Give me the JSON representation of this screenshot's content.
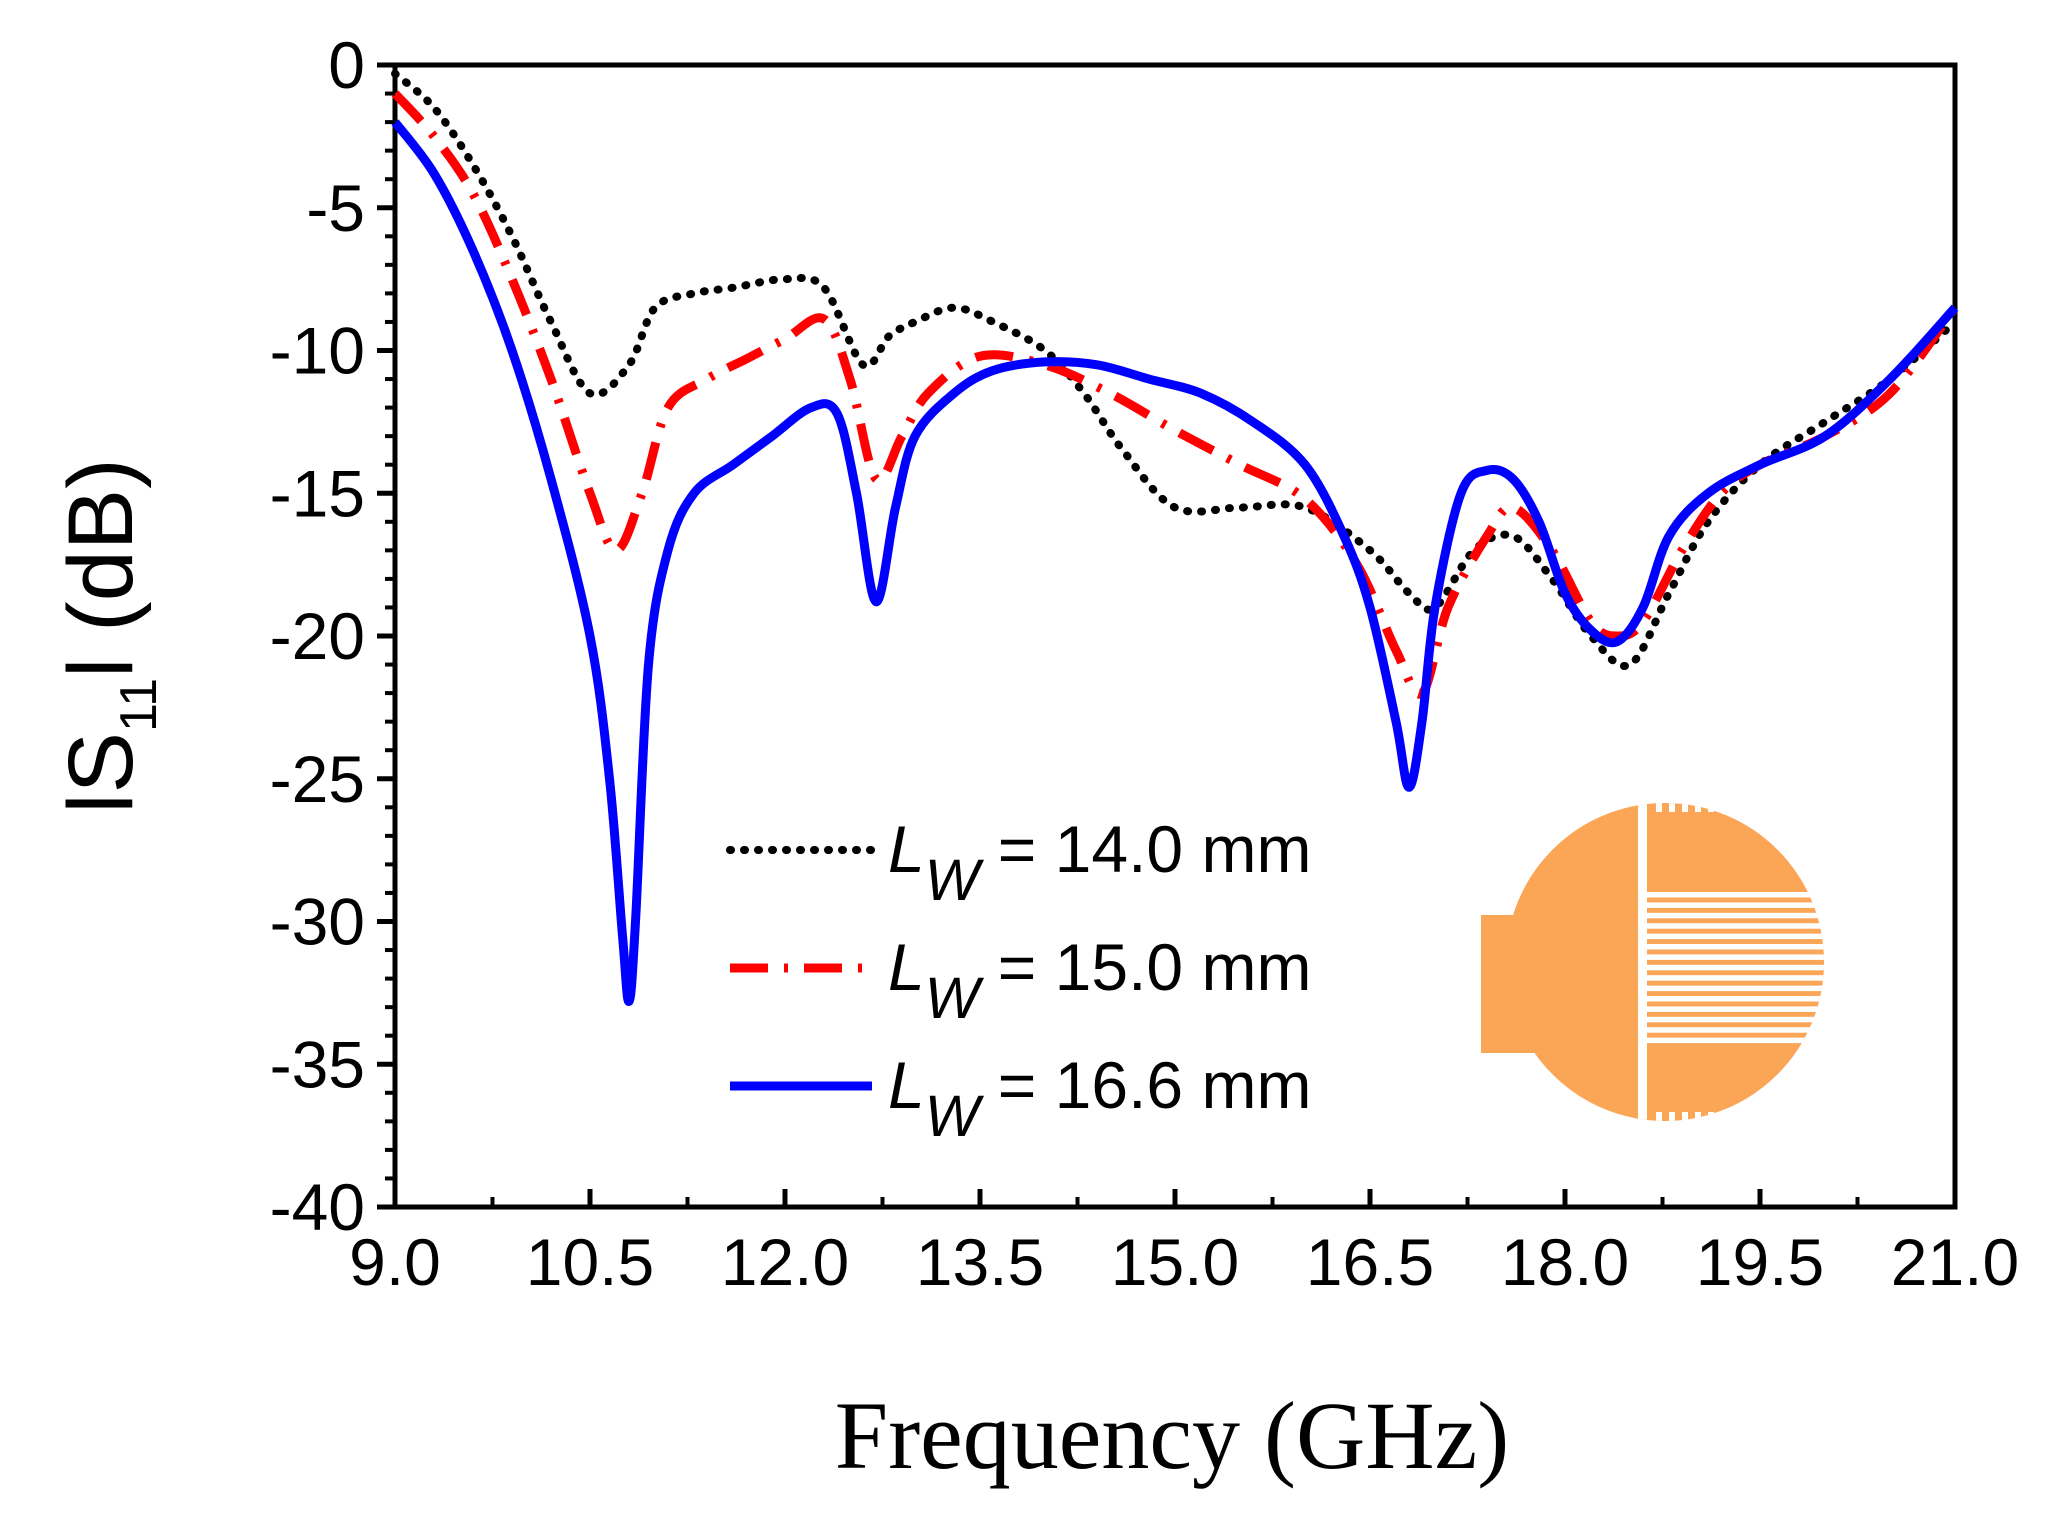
{
  "chart_data": {
    "type": "line",
    "xlabel": "Frequency (GHz)",
    "ylabel": {
      "prefix": "lS",
      "subscript": "11",
      "suffix": "l (dB)"
    },
    "xlim": [
      9.0,
      21.0
    ],
    "ylim": [
      -40,
      0
    ],
    "x_ticks": [
      "9.0",
      "10.5",
      "12.0",
      "13.5",
      "15.0",
      "16.5",
      "18.0",
      "19.5",
      "21.0"
    ],
    "x_tick_values": [
      9.0,
      10.5,
      12.0,
      13.5,
      15.0,
      16.5,
      18.0,
      19.5,
      21.0
    ],
    "y_ticks": [
      "0",
      "-5",
      "-10",
      "-15",
      "-20",
      "-25",
      "-30",
      "-35",
      "-40"
    ],
    "y_tick_values": [
      0,
      -5,
      -10,
      -15,
      -20,
      -25,
      -30,
      -35,
      -40
    ],
    "grid": false,
    "legend_position": "bottom-center",
    "series": [
      {
        "name": "L_W = 14.0 mm",
        "legend": {
          "symbol": "L",
          "sub": "W",
          "text": " = 14.0 mm"
        },
        "color": "#000000",
        "style": "dotted",
        "x": [
          9.0,
          9.3,
          9.6,
          9.9,
          10.2,
          10.5,
          10.8,
          11.0,
          11.3,
          11.6,
          12.0,
          12.3,
          12.6,
          12.8,
          13.0,
          13.3,
          13.6,
          14.0,
          14.3,
          14.6,
          15.0,
          15.5,
          16.0,
          16.5,
          16.8,
          17.0,
          17.3,
          17.6,
          17.9,
          18.2,
          18.5,
          18.8,
          19.1,
          19.5,
          20.0,
          20.5,
          21.0
        ],
        "y": [
          -0.3,
          -1.5,
          -3.5,
          -6.0,
          -9.0,
          -11.5,
          -10.5,
          -8.5,
          -8.0,
          -7.8,
          -7.5,
          -7.8,
          -10.5,
          -9.5,
          -9.0,
          -8.5,
          -9.0,
          -10.0,
          -11.5,
          -13.5,
          -15.5,
          -15.5,
          -15.5,
          -17.0,
          -18.5,
          -19.0,
          -17.0,
          -16.5,
          -18.0,
          -20.0,
          -21.0,
          -18.5,
          -16.0,
          -14.0,
          -12.5,
          -11.0,
          -9.0
        ]
      },
      {
        "name": "L_W = 15.0 mm",
        "legend": {
          "symbol": "L",
          "sub": "W",
          "text": " = 15.0 mm"
        },
        "color": "#ff0000",
        "style": "dash-dot",
        "x": [
          9.0,
          9.3,
          9.6,
          9.9,
          10.2,
          10.5,
          10.7,
          10.9,
          11.1,
          11.4,
          11.7,
          12.0,
          12.3,
          12.5,
          12.7,
          12.9,
          13.1,
          13.5,
          14.0,
          14.5,
          15.0,
          15.5,
          16.0,
          16.4,
          16.7,
          16.9,
          17.1,
          17.4,
          17.6,
          17.9,
          18.2,
          18.4,
          18.6,
          18.9,
          19.2,
          19.5,
          20.0,
          20.5,
          21.0
        ],
        "y": [
          -1.0,
          -2.5,
          -4.5,
          -7.5,
          -11.0,
          -15.0,
          -17.0,
          -15.0,
          -12.0,
          -11.0,
          -10.3,
          -9.6,
          -8.9,
          -11.0,
          -14.5,
          -13.0,
          -11.5,
          -10.2,
          -10.5,
          -11.5,
          -12.8,
          -14.0,
          -15.2,
          -17.5,
          -20.5,
          -22.0,
          -19.0,
          -16.5,
          -15.5,
          -17.0,
          -19.5,
          -20.0,
          -19.5,
          -17.0,
          -15.0,
          -14.0,
          -13.0,
          -11.5,
          -8.5
        ]
      },
      {
        "name": "L_W = 16.6 mm",
        "legend": {
          "symbol": "L",
          "sub": "W",
          "text": " = 16.6 mm"
        },
        "color": "#0000ff",
        "style": "solid",
        "x": [
          9.0,
          9.3,
          9.6,
          9.9,
          10.2,
          10.5,
          10.65,
          10.75,
          10.8,
          10.85,
          10.95,
          11.1,
          11.3,
          11.6,
          11.9,
          12.2,
          12.4,
          12.55,
          12.7,
          12.85,
          13.0,
          13.3,
          13.6,
          14.0,
          14.4,
          14.8,
          15.2,
          15.6,
          16.0,
          16.3,
          16.5,
          16.7,
          16.8,
          16.9,
          17.0,
          17.2,
          17.4,
          17.6,
          17.8,
          18.0,
          18.2,
          18.4,
          18.6,
          18.8,
          19.1,
          19.5,
          20.0,
          20.5,
          21.0
        ],
        "y": [
          -2.0,
          -3.8,
          -6.5,
          -10.0,
          -14.5,
          -20.0,
          -25.0,
          -30.5,
          -32.8,
          -30.0,
          -21.0,
          -17.0,
          -15.0,
          -14.0,
          -13.0,
          -12.0,
          -12.2,
          -15.0,
          -18.8,
          -15.5,
          -13.0,
          -11.5,
          -10.7,
          -10.4,
          -10.5,
          -11.0,
          -11.5,
          -12.5,
          -14.0,
          -16.5,
          -19.0,
          -23.0,
          -25.3,
          -23.0,
          -19.0,
          -15.0,
          -14.2,
          -14.5,
          -16.0,
          -18.5,
          -19.8,
          -20.2,
          -19.0,
          -16.5,
          -15.0,
          -14.0,
          -13.0,
          -11.0,
          -8.5
        ]
      }
    ],
    "inset": {
      "description_name": "antenna-geometry-inset",
      "color": "#fba557"
    }
  }
}
